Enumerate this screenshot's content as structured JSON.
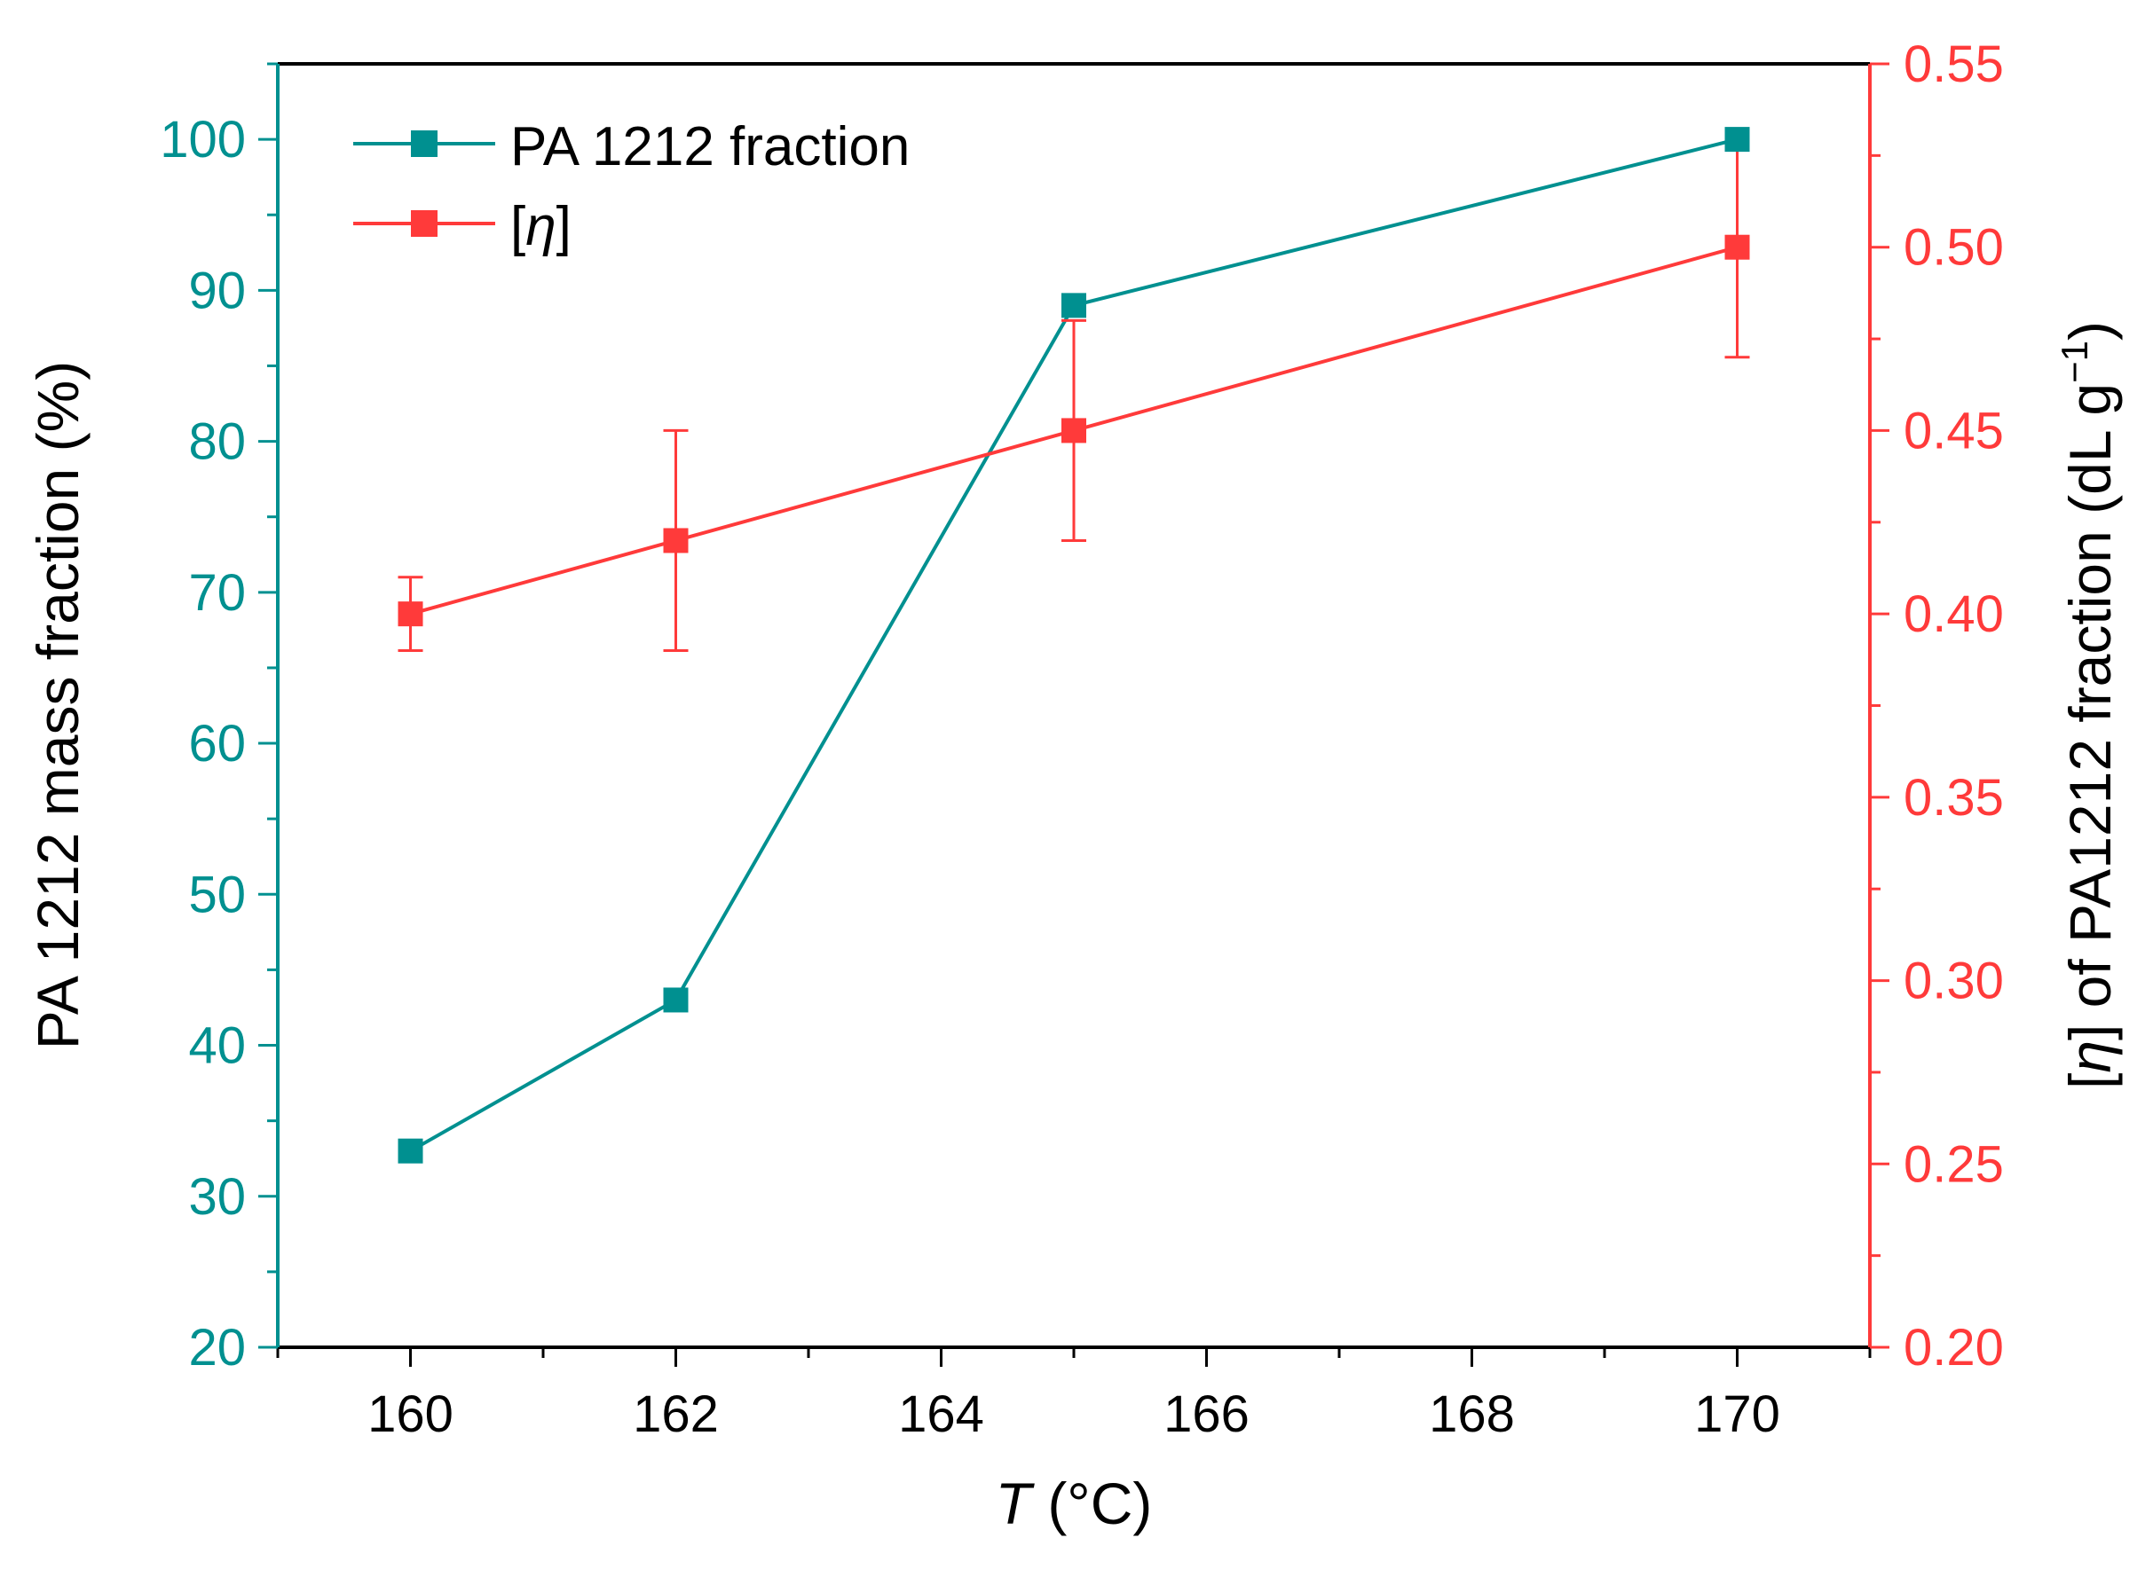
{
  "chart_data": {
    "type": "line",
    "x": [
      160,
      162,
      165,
      170
    ],
    "series": [
      {
        "name": "PA 1212 fraction",
        "axis": "left",
        "color": "#009090",
        "marker": "square",
        "values": [
          33,
          43,
          89,
          100
        ]
      },
      {
        "name": "[η]",
        "axis": "right",
        "color": "#ff3a3a",
        "marker": "square",
        "values": [
          0.4,
          0.42,
          0.45,
          0.5
        ],
        "error": [
          0.01,
          0.03,
          0.03,
          0.03
        ]
      }
    ],
    "xlabel_italic": "T",
    "xlabel_rest": " (°C)",
    "ylabel_left": "PA 1212 mass fraction (%)",
    "ylabel_right": {
      "open": "[",
      "symbol": "η",
      "middle": "] of PA1212 fraction (dL g",
      "superscript": "−1",
      "close": ")"
    },
    "xlim": [
      159,
      171
    ],
    "ylim_left": [
      20,
      105
    ],
    "ylim_right": [
      0.2,
      0.55
    ],
    "x_ticks": [
      160,
      162,
      164,
      166,
      168,
      170
    ],
    "x_tick_labels": [
      "160",
      "162",
      "164",
      "166",
      "168",
      "170"
    ],
    "y_left_ticks": [
      20,
      30,
      40,
      50,
      60,
      70,
      80,
      90,
      100
    ],
    "y_left_tick_labels": [
      "20",
      "30",
      "40",
      "50",
      "60",
      "70",
      "80",
      "90",
      "100"
    ],
    "y_right_ticks": [
      0.2,
      0.25,
      0.3,
      0.35,
      0.4,
      0.45,
      0.5,
      0.55
    ],
    "y_right_tick_labels": [
      "0.20",
      "0.25",
      "0.30",
      "0.35",
      "0.40",
      "0.45",
      "0.50",
      "0.55"
    ],
    "legend_position": "top-left",
    "legend": {
      "item1_label": "PA 1212 fraction",
      "item2_open": "[",
      "item2_symbol": "η",
      "item2_close": "]"
    },
    "colors": {
      "left_axis": "#009090",
      "right_axis": "#ff3a3a",
      "frame": "#000000"
    },
    "grid": false
  }
}
